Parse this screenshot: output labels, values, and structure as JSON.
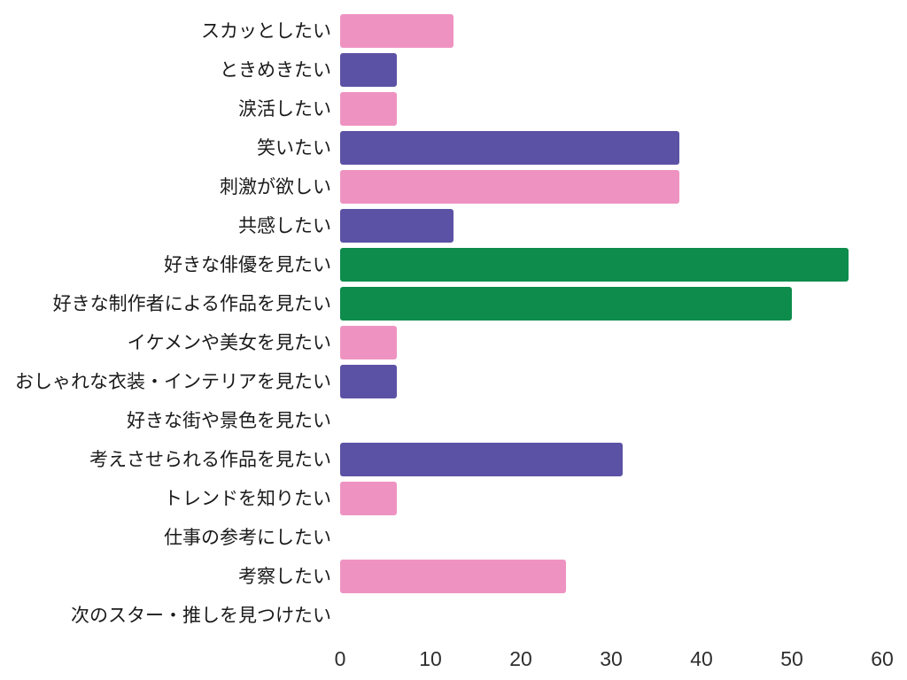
{
  "chart_data": {
    "type": "bar",
    "orientation": "horizontal",
    "title": "",
    "xlabel": "",
    "ylabel": "",
    "xlim": [
      0,
      60
    ],
    "x_ticks": [
      "0",
      "10",
      "20",
      "30",
      "40",
      "50",
      "60"
    ],
    "grid": false,
    "legend": null,
    "categories": [
      "スカッとしたい",
      "ときめきたい",
      "涙活したい",
      "笑いたい",
      "刺激が欲しい",
      "共感したい",
      "好きな俳優を見たい",
      "好きな制作者による作品を見たい",
      "イケメンや美女を見たい",
      "おしゃれな衣装・インテリアを見たい",
      "好きな街や景色を見たい",
      "考えさせられる作品を見たい",
      "トレンドを知りたい",
      "仕事の参考にしたい",
      "考察したい",
      "次のスター・推しを見つけたい"
    ],
    "values": [
      12.5,
      6.25,
      6.25,
      37.5,
      37.5,
      12.5,
      56.25,
      50,
      6.25,
      6.25,
      0,
      31.25,
      6.25,
      0,
      25,
      0
    ],
    "bar_colors": [
      "#EE93C1",
      "#5B52A5",
      "#EE93C1",
      "#5B52A5",
      "#EE93C1",
      "#5B52A5",
      "#0D8C4C",
      "#0D8C4C",
      "#EE93C1",
      "#5B52A5",
      null,
      "#5B52A5",
      "#EE93C1",
      null,
      "#EE93C1",
      null
    ]
  },
  "colors": {
    "pink": "#EE93C1",
    "purple": "#5B52A5",
    "green": "#0D8C4C",
    "background": "#FFFFFF",
    "label_text": "#1A1A1A",
    "tick_text": "#2E2E2E"
  }
}
